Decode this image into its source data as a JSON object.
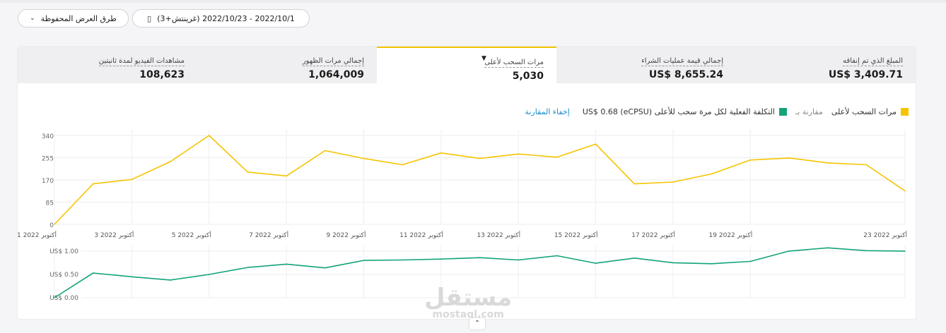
{
  "toolbar": {
    "saved_views_label": "طرق العرض المحفوظة",
    "date_range_label": "2022/10/1 - 2022/10/23 (غرينتش+3)",
    "chevron_icon": "chevron-down-icon",
    "calendar_icon": "calendar-icon"
  },
  "metrics": {
    "amount_spent": {
      "label": "المبلغ الذي تم إنفاقه",
      "value": "US$ 3,409.71"
    },
    "purchase_value": {
      "label": "إجمالي قيمة عمليات الشراء",
      "value": "US$ 8,655.24"
    },
    "swipe_ups": {
      "label": "مرات السحب لأعلى",
      "value": "5,030"
    },
    "impressions": {
      "label": "إجمالي مرات الظهور",
      "value": "1,064,009"
    },
    "video_views": {
      "label": "مشاهدات الفيديو لمدة ثانيتين",
      "value": "108,623"
    }
  },
  "legend": {
    "primary": "مرات السحب لأعلى",
    "compare_prefix": "مقارنة بـ",
    "secondary": "التكلفة الفعلية لكل مرة سحب للأعلى (eCPSU) US$ 0.68",
    "hide_compare": "إخفاء المقارنة"
  },
  "colors": {
    "primary": "#f5c400",
    "secondary": "#12a37a",
    "accent": "#f2c500",
    "link": "#1a8fcf"
  },
  "chart_data": [
    {
      "type": "line",
      "x": [
        "2022-10-01",
        "2022-10-02",
        "2022-10-03",
        "2022-10-04",
        "2022-10-05",
        "2022-10-06",
        "2022-10-07",
        "2022-10-08",
        "2022-10-09",
        "2022-10-10",
        "2022-10-11",
        "2022-10-12",
        "2022-10-13",
        "2022-10-14",
        "2022-10-15",
        "2022-10-16",
        "2022-10-17",
        "2022-10-18",
        "2022-10-19",
        "2022-10-20",
        "2022-10-21",
        "2022-10-22",
        "2022-10-23"
      ],
      "series": [
        {
          "values": [
            0,
            155,
            172,
            240,
            340,
            200,
            185,
            282,
            252,
            228,
            273,
            252,
            269,
            257,
            307,
            155,
            162,
            193,
            246,
            254,
            235,
            228,
            128
          ]
        }
      ],
      "x_tick_labels": [
        "1 أكتوبر 2022",
        "3 أكتوبر 2022",
        "5 أكتوبر 2022",
        "7 أكتوبر 2022",
        "9 أكتوبر 2022",
        "11 أكتوبر 2022",
        "13 أكتوبر 2022",
        "15 أكتوبر 2022",
        "17 أكتوبر 2022",
        "19 أكتوبر 2022",
        "23 أكتوبر 2022"
      ],
      "x_tick_days": [
        1,
        3,
        5,
        7,
        9,
        11,
        13,
        15,
        17,
        19,
        23
      ],
      "y_ticks": [
        "0",
        "85",
        "170",
        "255",
        "340"
      ],
      "ylim": [
        0,
        340
      ],
      "grid": true
    },
    {
      "type": "line",
      "x": [
        "2022-10-01",
        "2022-10-02",
        "2022-10-03",
        "2022-10-04",
        "2022-10-05",
        "2022-10-06",
        "2022-10-07",
        "2022-10-08",
        "2022-10-09",
        "2022-10-10",
        "2022-10-11",
        "2022-10-12",
        "2022-10-13",
        "2022-10-14",
        "2022-10-15",
        "2022-10-16",
        "2022-10-17",
        "2022-10-18",
        "2022-10-19",
        "2022-10-20",
        "2022-10-21",
        "2022-10-22",
        "2022-10-23"
      ],
      "series": [
        {
          "values": [
            0.0,
            0.53,
            0.45,
            0.38,
            0.5,
            0.65,
            0.72,
            0.64,
            0.8,
            0.81,
            0.83,
            0.86,
            0.81,
            0.9,
            0.74,
            0.85,
            0.75,
            0.73,
            0.78,
            1.0,
            1.07,
            1.01,
            1.0
          ]
        }
      ],
      "y_ticks": [
        "US$ 0.00",
        "US$ 0.50",
        "US$ 1.00"
      ],
      "ylim": [
        0,
        1.12
      ],
      "grid": true
    }
  ],
  "watermark": {
    "arabic": "مستقل",
    "latin": "mostaql.com"
  },
  "collapse_icon": "chevron-up-icon"
}
